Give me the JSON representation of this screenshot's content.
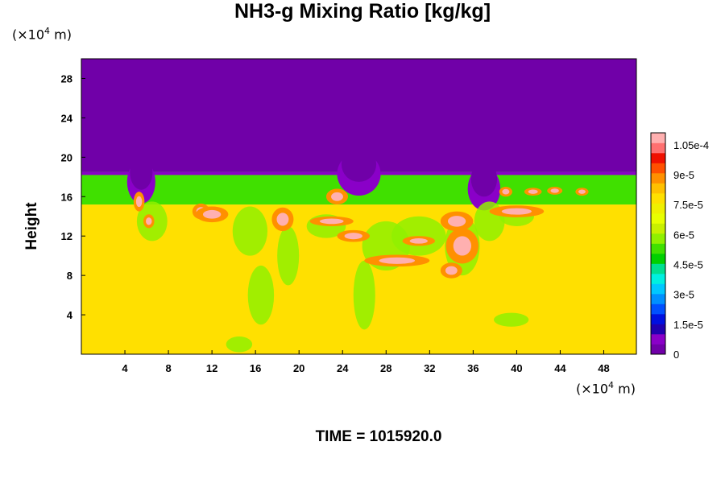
{
  "chart_data": {
    "type": "heatmap",
    "title": "NH3-g Mixing Ratio [kg/kg]",
    "ylabel": "Height",
    "x_unit": "(×10",
    "x_unit_exp": "4",
    "x_unit_tail": " m)",
    "y_unit": "(×10",
    "y_unit_exp": "4",
    "y_unit_tail": " m)",
    "xlim": [
      0,
      51
    ],
    "ylim": [
      0,
      30
    ],
    "x_ticks": [
      4,
      8,
      12,
      16,
      20,
      24,
      28,
      32,
      36,
      40,
      44,
      48
    ],
    "y_ticks": [
      4,
      8,
      12,
      16,
      20,
      24,
      28
    ],
    "colorbar": {
      "min": 0,
      "max": 0.000111,
      "tick_values": [
        0,
        1.5e-05,
        3e-05,
        4.5e-05,
        6e-05,
        7.5e-05,
        9e-05,
        0.000105
      ],
      "tick_labels": [
        "0",
        "1.5e-5",
        "3e-5",
        "4.5e-5",
        "6e-5",
        "7.5e-5",
        "9e-5",
        "1.05e-4"
      ]
    },
    "field_summary": {
      "upper_layer_value": 0,
      "upper_layer_bottom_height": 18.5,
      "green_band": [
        15.2,
        18.5
      ],
      "green_band_value": 5.5e-05,
      "lower_layer_value": 7.8e-05,
      "max_value": 0.00011
    },
    "time_label": "TIME = 1015920.0"
  },
  "palette": [
    "#7000a8",
    "#8a00c8",
    "#2000b0",
    "#0010e0",
    "#0050ff",
    "#0090ff",
    "#00c8ff",
    "#00f0e0",
    "#00e090",
    "#00d000",
    "#40e000",
    "#90f000",
    "#c8f000",
    "#e8ff00",
    "#f0f000",
    "#ffe000",
    "#ffc000",
    "#ff9000",
    "#ff5000",
    "#f01000",
    "#ff7070",
    "#ffb0b0"
  ]
}
